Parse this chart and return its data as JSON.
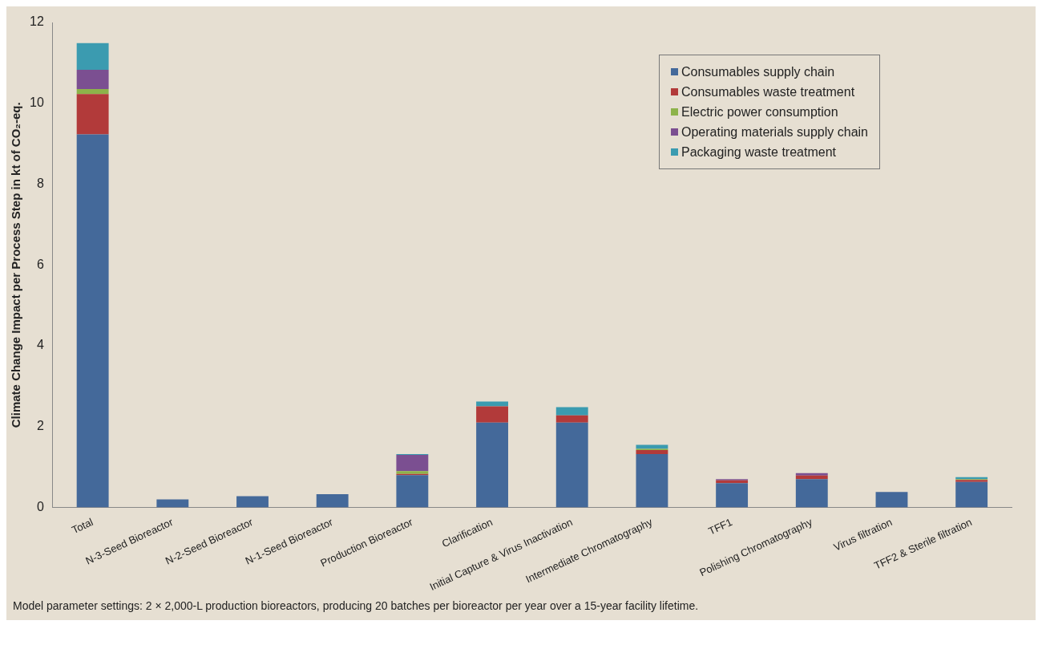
{
  "chart_data": {
    "type": "bar",
    "stacked": true,
    "ylabel": "Climate Change Impact per Process Step in kt of CO₂-eq.",
    "categories": [
      "Total",
      "N-3-Seed Bioreactor",
      "N-2-Seed Bioreactor",
      "N-1-Seed Bioreactor",
      "Production Bioreactor",
      "Clarification",
      "Initial Capture & Virus Inactivation",
      "Intermediate Chromatography",
      "TFF1",
      "Polishing Chromatography",
      "Virus filtration",
      "TFF2 & Sterile filtration"
    ],
    "series": [
      {
        "name": "Consumables supply chain",
        "color": "#44699a",
        "values": [
          9.23,
          0.2,
          0.28,
          0.33,
          0.8,
          2.1,
          2.1,
          1.32,
          0.6,
          0.7,
          0.38,
          0.63
        ]
      },
      {
        "name": "Consumables waste treatment",
        "color": "#b23a3a",
        "values": [
          1.0,
          0,
          0,
          0,
          0.03,
          0.4,
          0.18,
          0.1,
          0.07,
          0.09,
          0,
          0.05
        ]
      },
      {
        "name": "Electric power consumption",
        "color": "#8db34a",
        "values": [
          0.12,
          0,
          0,
          0,
          0.07,
          0,
          0,
          0.03,
          0,
          0,
          0,
          0.02
        ]
      },
      {
        "name": "Operating materials supply chain",
        "color": "#7b4f91",
        "values": [
          0.48,
          0,
          0,
          0,
          0.4,
          0,
          0,
          0,
          0.03,
          0.06,
          0,
          0
        ]
      },
      {
        "name": "Packaging waste treatment",
        "color": "#3b9bb0",
        "values": [
          0.66,
          0,
          0,
          0,
          0.02,
          0.12,
          0.2,
          0.1,
          0,
          0,
          0,
          0.05
        ]
      }
    ],
    "ylim": [
      0,
      12
    ],
    "yticks": [
      0,
      2,
      4,
      6,
      8,
      10,
      12
    ],
    "grid": false,
    "legend": "top right",
    "annotations": [
      "Model parameter settings: 2 × 2,000-L production bioreactors, producing 20 batches per bioreactor per year over a 15-year facility lifetime."
    ]
  }
}
